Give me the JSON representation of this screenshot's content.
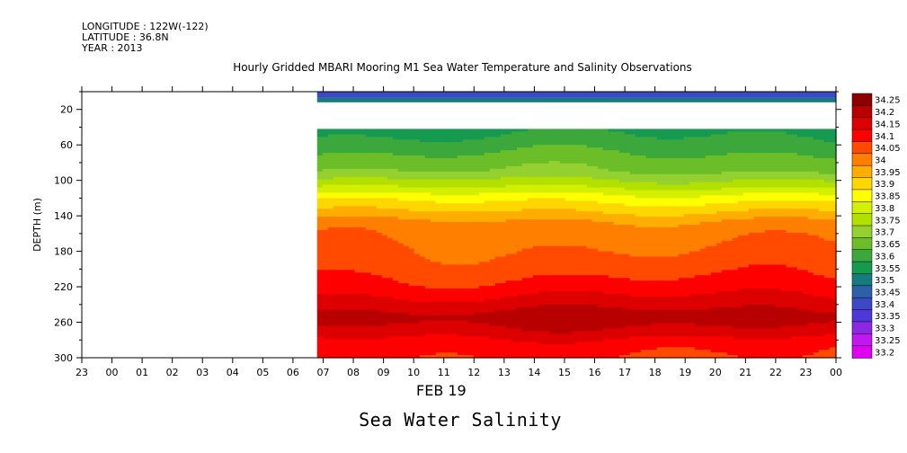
{
  "meta": {
    "longitude": "LONGITUDE : 122W(-122)",
    "latitude": "LATITUDE : 36.8N",
    "year": "YEAR : 2013"
  },
  "title": "Hourly Gridded MBARI Mooring M1 Sea Water Temperature and Salinity Observations",
  "bottom_label": "Sea Water Salinity",
  "date_label": "FEB 19",
  "chart_data": {
    "type": "heatmap",
    "title": "Hourly Gridded MBARI Mooring M1 Sea Water Temperature and Salinity Observations",
    "ylabel": "DEPTH (m)",
    "xlabel": "FEB 19",
    "x_ticks": [
      "23",
      "00",
      "01",
      "02",
      "03",
      "04",
      "05",
      "06",
      "07",
      "08",
      "09",
      "10",
      "11",
      "12",
      "13",
      "14",
      "15",
      "16",
      "17",
      "18",
      "19",
      "20",
      "21",
      "22",
      "23",
      "00"
    ],
    "y_ticks": [
      20,
      60,
      100,
      140,
      180,
      220,
      260,
      300
    ],
    "ylim": [
      300,
      0
    ],
    "x_data_start_hour_index": 7.8,
    "colorbar": {
      "levels": [
        "34.25",
        "34.2",
        "34.15",
        "34.1",
        "34.05",
        "34",
        "33.95",
        "33.9",
        "33.85",
        "33.8",
        "33.75",
        "33.7",
        "33.65",
        "33.6",
        "33.55",
        "33.5",
        "33.45",
        "33.4",
        "33.35",
        "33.3",
        "33.25",
        "33.2"
      ],
      "colors": [
        "#8c0000",
        "#b80000",
        "#dc0000",
        "#ff0000",
        "#ff4a00",
        "#ff7f00",
        "#ffad00",
        "#ffd700",
        "#ffff00",
        "#d4f000",
        "#b4e000",
        "#94d030",
        "#6cbe28",
        "#3ca83c",
        "#169a50",
        "#147c7c",
        "#2e60a8",
        "#3c48c4",
        "#5038d8",
        "#8c28e4",
        "#c018ee",
        "#e000f0"
      ]
    },
    "profile": {
      "depths": [
        10,
        40,
        50,
        70,
        90,
        105,
        120,
        135,
        145,
        150,
        175,
        200,
        220,
        240,
        255,
        270,
        285,
        300
      ],
      "values": [
        33.45,
        33.58,
        33.6,
        33.65,
        33.7,
        33.78,
        33.88,
        33.95,
        34.0,
        34.02,
        34.05,
        34.08,
        34.12,
        34.18,
        34.23,
        34.18,
        34.12,
        34.1
      ]
    }
  }
}
